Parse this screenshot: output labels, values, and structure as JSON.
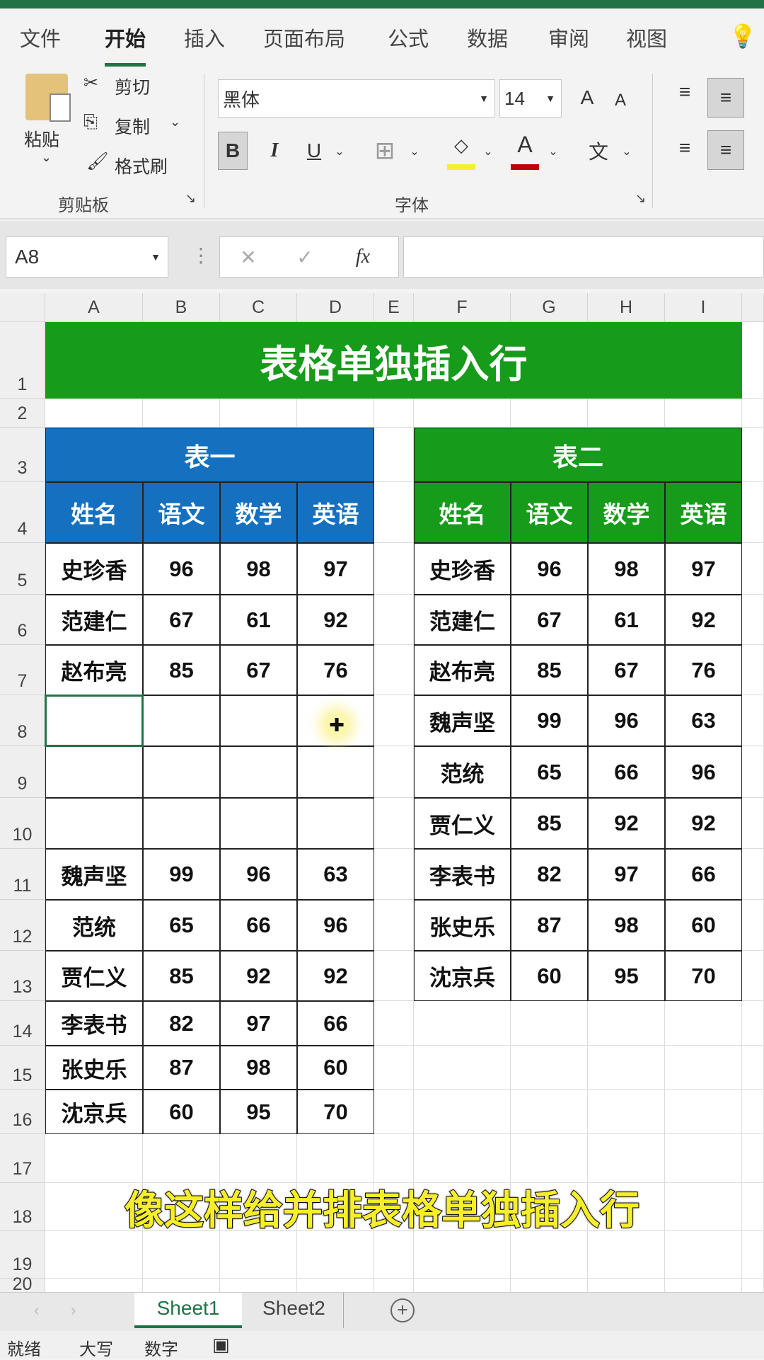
{
  "menu": {
    "tabs": [
      "文件",
      "开始",
      "插入",
      "页面布局",
      "公式",
      "数据",
      "审阅",
      "视图"
    ],
    "active": 1
  },
  "ribbon": {
    "paste": "粘贴",
    "cut": "剪切",
    "copy": "复制",
    "format_painter": "格式刷",
    "clipboard_group": "剪贴板",
    "font_name": "黑体",
    "font_size": "14",
    "bold": "B",
    "italic": "I",
    "underline": "U",
    "font_group": "字体",
    "font_color": "A",
    "phonetic": "文",
    "grow": "A",
    "shrink": "A"
  },
  "formula_bar": {
    "name_box": "A8",
    "cancel": "✕",
    "enter": "✓",
    "fx": "fx",
    "value": ""
  },
  "columns": [
    "A",
    "B",
    "C",
    "D",
    "E",
    "F",
    "G",
    "H",
    "I"
  ],
  "rows": [
    "1",
    "2",
    "3",
    "4",
    "5",
    "6",
    "7",
    "8",
    "9",
    "10",
    "11",
    "12",
    "13",
    "14",
    "15",
    "16",
    "17",
    "18",
    "19",
    "20"
  ],
  "sheet": {
    "title": "表格单独插入行",
    "table1": {
      "caption": "表一",
      "headers": [
        "姓名",
        "语文",
        "数学",
        "英语"
      ],
      "rows": [
        [
          "史珍香",
          "96",
          "98",
          "97"
        ],
        [
          "范建仁",
          "67",
          "61",
          "92"
        ],
        [
          "赵布亮",
          "85",
          "67",
          "76"
        ],
        [
          "",
          "",
          "",
          ""
        ],
        [
          "",
          "",
          "",
          ""
        ],
        [
          "",
          "",
          "",
          ""
        ],
        [
          "魏声坚",
          "99",
          "96",
          "63"
        ],
        [
          "范统",
          "65",
          "66",
          "96"
        ],
        [
          "贾仁义",
          "85",
          "92",
          "92"
        ],
        [
          "李表书",
          "82",
          "97",
          "66"
        ],
        [
          "张史乐",
          "87",
          "98",
          "60"
        ],
        [
          "沈京兵",
          "60",
          "95",
          "70"
        ]
      ]
    },
    "table2": {
      "caption": "表二",
      "headers": [
        "姓名",
        "语文",
        "数学",
        "英语"
      ],
      "rows": [
        [
          "史珍香",
          "96",
          "98",
          "97"
        ],
        [
          "范建仁",
          "67",
          "61",
          "92"
        ],
        [
          "赵布亮",
          "85",
          "67",
          "76"
        ],
        [
          "魏声坚",
          "99",
          "96",
          "63"
        ],
        [
          "范统",
          "65",
          "66",
          "96"
        ],
        [
          "贾仁义",
          "85",
          "92",
          "92"
        ],
        [
          "李表书",
          "82",
          "97",
          "66"
        ],
        [
          "张史乐",
          "87",
          "98",
          "60"
        ],
        [
          "沈京兵",
          "60",
          "95",
          "70"
        ]
      ]
    }
  },
  "colors": {
    "title_bg": "#169b1a",
    "table1_header": "#1570c0",
    "table2_header": "#169b1a",
    "selection": "#217346"
  },
  "subtitle": "像这样给并排表格单独插入行",
  "sheet_tabs": [
    "Sheet1",
    "Sheet2"
  ],
  "active_sheet": 0,
  "status": [
    "就绪",
    "大写",
    "数字"
  ]
}
